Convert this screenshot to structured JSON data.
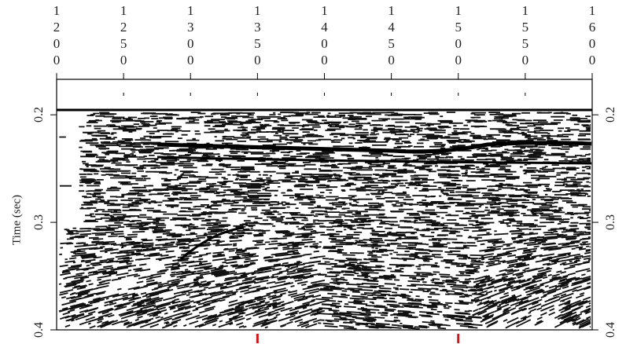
{
  "chart_data": {
    "type": "seismic",
    "ylabel": "Time (sec)",
    "xlim": [
      1200,
      1600
    ],
    "xticks": [
      1200,
      1250,
      1300,
      1350,
      1400,
      1450,
      1500,
      1550,
      1600
    ],
    "ylim": [
      0.167,
      0.4
    ],
    "yticks": [
      0.2,
      0.3,
      0.4
    ],
    "y_inverted": true,
    "markers": [
      1350,
      1500
    ],
    "marker_color": "#d0181c"
  }
}
